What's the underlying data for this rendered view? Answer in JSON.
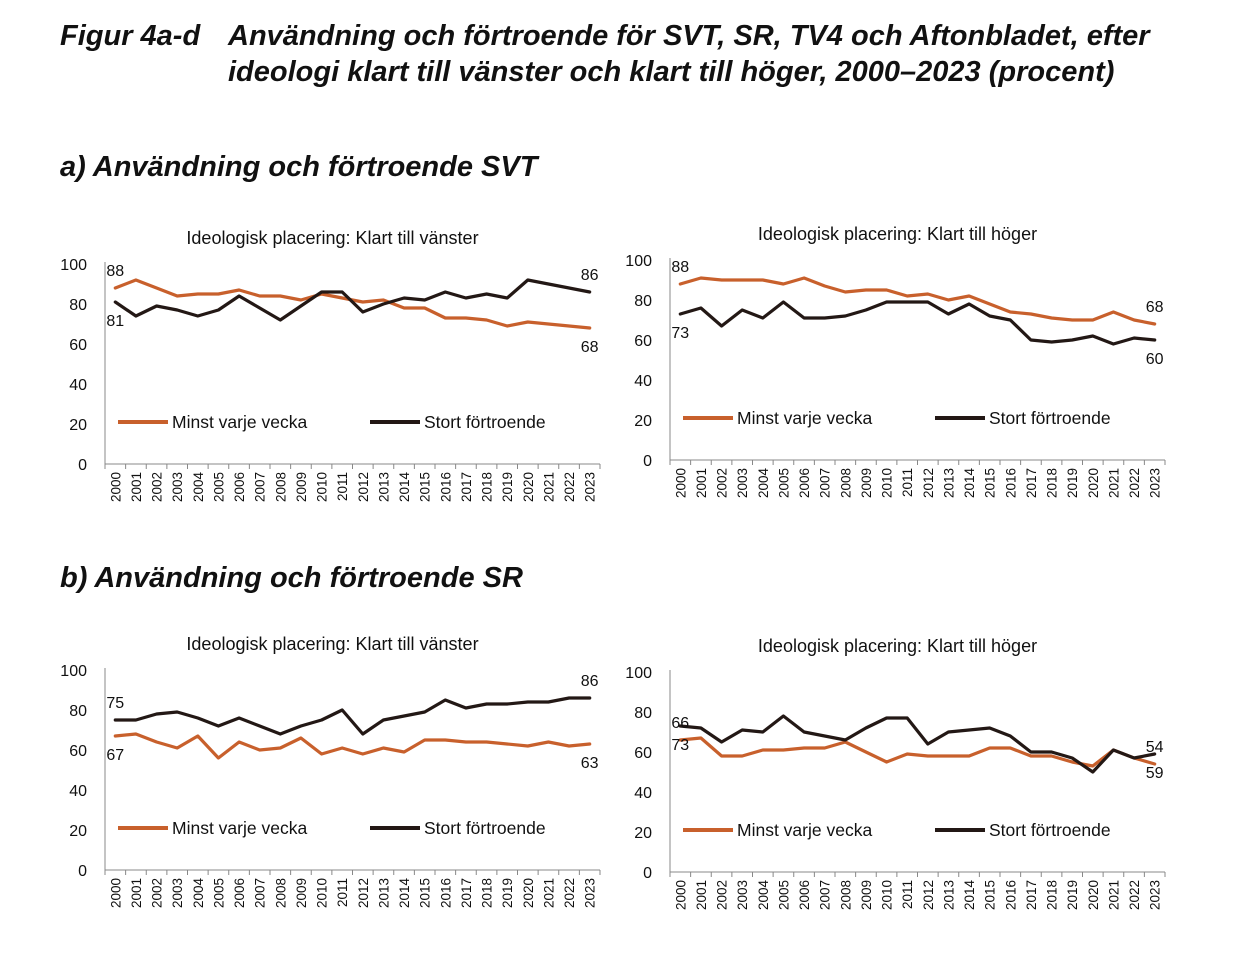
{
  "figure": {
    "number": "Figur 4a-d",
    "title": "Användning och förtroende för SVT, SR, TV4 och Aftonbladet, efter ideologi klart till vänster och klart till höger, 2000–2023 (procent)"
  },
  "sections": {
    "a": "a) Användning och förtroende SVT",
    "b": "b) Användning och förtroende SR"
  },
  "colors": {
    "usage": "#c8602c",
    "trust": "#231815",
    "axis": "#888888"
  },
  "chart_data": [
    {
      "type": "line",
      "title": "Ideologisk placering: Klart till vänster",
      "x": [
        "2000",
        "2001",
        "2002",
        "2003",
        "2004",
        "2005",
        "2006",
        "2007",
        "2008",
        "2009",
        "2010",
        "2011",
        "2012",
        "2013",
        "2014",
        "2015",
        "2016",
        "2017",
        "2018",
        "2019",
        "2020",
        "2021",
        "2022",
        "2023"
      ],
      "ylim": [
        0,
        100
      ],
      "yticks": [
        "0",
        "20",
        "40",
        "60",
        "80",
        "100"
      ],
      "legend_position": "bottom",
      "series": [
        {
          "name": "Minst varje vecka",
          "values": [
            88,
            92,
            88,
            84,
            85,
            85,
            87,
            84,
            84,
            82,
            85,
            83,
            81,
            82,
            78,
            78,
            73,
            73,
            72,
            69,
            71,
            70,
            69,
            68
          ]
        },
        {
          "name": "Stort förtroende",
          "values": [
            81,
            74,
            79,
            77,
            74,
            77,
            84,
            78,
            72,
            79,
            86,
            86,
            76,
            80,
            83,
            82,
            86,
            83,
            85,
            83,
            92,
            90,
            88,
            86
          ]
        }
      ],
      "labels": [
        {
          "text": "88",
          "series": 0,
          "index": 0,
          "pos": "above"
        },
        {
          "text": "81",
          "series": 1,
          "index": 0,
          "pos": "below"
        },
        {
          "text": "86",
          "series": 1,
          "index": 23,
          "pos": "above"
        },
        {
          "text": "68",
          "series": 0,
          "index": 23,
          "pos": "below"
        }
      ]
    },
    {
      "type": "line",
      "title": "Ideologisk placering: Klart till höger",
      "x": [
        "2000",
        "2001",
        "2002",
        "2003",
        "2004",
        "2005",
        "2006",
        "2007",
        "2008",
        "2009",
        "2010",
        "2011",
        "2012",
        "2013",
        "2014",
        "2015",
        "2016",
        "2017",
        "2018",
        "2019",
        "2020",
        "2021",
        "2022",
        "2023"
      ],
      "ylim": [
        0,
        100
      ],
      "yticks": [
        "0",
        "20",
        "40",
        "60",
        "80",
        "100"
      ],
      "legend_position": "bottom",
      "series": [
        {
          "name": "Minst varje vecka",
          "values": [
            88,
            91,
            90,
            90,
            90,
            88,
            91,
            87,
            84,
            85,
            85,
            82,
            83,
            80,
            82,
            78,
            74,
            73,
            71,
            70,
            70,
            74,
            70,
            68
          ]
        },
        {
          "name": "Stort förtroende",
          "values": [
            73,
            76,
            67,
            75,
            71,
            79,
            71,
            71,
            72,
            75,
            79,
            79,
            79,
            73,
            78,
            72,
            70,
            60,
            59,
            60,
            62,
            58,
            61,
            60
          ]
        }
      ],
      "labels": [
        {
          "text": "88",
          "series": 0,
          "index": 0,
          "pos": "above"
        },
        {
          "text": "73",
          "series": 1,
          "index": 0,
          "pos": "below"
        },
        {
          "text": "68",
          "series": 0,
          "index": 23,
          "pos": "above"
        },
        {
          "text": "60",
          "series": 1,
          "index": 23,
          "pos": "below"
        }
      ]
    },
    {
      "type": "line",
      "title": "Ideologisk placering: Klart till vänster",
      "x": [
        "2000",
        "2001",
        "2002",
        "2003",
        "2004",
        "2005",
        "2006",
        "2007",
        "2008",
        "2009",
        "2010",
        "2011",
        "2012",
        "2013",
        "2014",
        "2015",
        "2016",
        "2017",
        "2018",
        "2019",
        "2020",
        "2021",
        "2022",
        "2023"
      ],
      "ylim": [
        0,
        100
      ],
      "yticks": [
        "0",
        "20",
        "40",
        "60",
        "80",
        "100"
      ],
      "legend_position": "bottom",
      "series": [
        {
          "name": "Minst varje vecka",
          "values": [
            67,
            68,
            64,
            61,
            67,
            56,
            64,
            60,
            61,
            66,
            58,
            61,
            58,
            61,
            59,
            65,
            65,
            64,
            64,
            63,
            62,
            64,
            62,
            63
          ]
        },
        {
          "name": "Stort förtroende",
          "values": [
            75,
            75,
            78,
            79,
            76,
            72,
            76,
            72,
            68,
            72,
            75,
            80,
            68,
            75,
            77,
            79,
            85,
            81,
            83,
            83,
            84,
            84,
            86,
            86
          ]
        }
      ],
      "labels": [
        {
          "text": "75",
          "series": 1,
          "index": 0,
          "pos": "above"
        },
        {
          "text": "67",
          "series": 0,
          "index": 0,
          "pos": "below"
        },
        {
          "text": "86",
          "series": 1,
          "index": 23,
          "pos": "above"
        },
        {
          "text": "63",
          "series": 0,
          "index": 23,
          "pos": "below"
        }
      ]
    },
    {
      "type": "line",
      "title": "Ideologisk placering: Klart till höger",
      "x": [
        "2000",
        "2001",
        "2002",
        "2003",
        "2004",
        "2005",
        "2006",
        "2007",
        "2008",
        "2009",
        "2010",
        "2011",
        "2012",
        "2013",
        "2014",
        "2015",
        "2016",
        "2017",
        "2018",
        "2019",
        "2020",
        "2021",
        "2022",
        "2023"
      ],
      "ylim": [
        0,
        100
      ],
      "yticks": [
        "0",
        "20",
        "40",
        "60",
        "80",
        "100"
      ],
      "legend_position": "bottom",
      "series": [
        {
          "name": "Minst varje vecka",
          "values": [
            66,
            67,
            58,
            58,
            61,
            61,
            62,
            62,
            65,
            60,
            55,
            59,
            58,
            58,
            58,
            62,
            62,
            58,
            58,
            55,
            53,
            61,
            57,
            54
          ]
        },
        {
          "name": "Stort förtroende",
          "values": [
            73,
            72,
            65,
            71,
            70,
            78,
            70,
            68,
            66,
            72,
            77,
            77,
            64,
            70,
            71,
            72,
            68,
            60,
            60,
            57,
            50,
            61,
            57,
            59
          ]
        }
      ],
      "labels": [
        {
          "text": "66",
          "series": 0,
          "index": 0,
          "pos": "above"
        },
        {
          "text": "73",
          "series": 1,
          "index": 0,
          "pos": "below"
        },
        {
          "text": "54",
          "series": 0,
          "index": 23,
          "pos": "above"
        },
        {
          "text": "59",
          "series": 1,
          "index": 23,
          "pos": "below"
        }
      ]
    }
  ]
}
